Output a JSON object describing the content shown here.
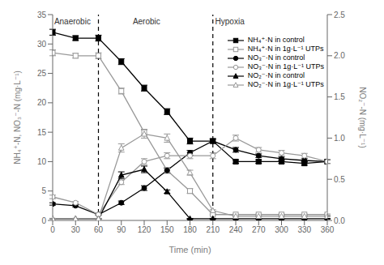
{
  "chart_data": {
    "type": "line",
    "xlabel": "Time (min)",
    "ylabel": "NH₄⁺-N, NO₃⁻-N  (mg·L⁻¹)",
    "y2label": "NO₂⁻-N  (mg·L⁻¹)",
    "x": [
      0,
      30,
      60,
      90,
      120,
      150,
      180,
      210,
      240,
      270,
      300,
      330,
      360
    ],
    "xlim": [
      0,
      360
    ],
    "xticks": [
      0,
      30,
      60,
      90,
      120,
      150,
      180,
      210,
      240,
      270,
      300,
      330,
      360
    ],
    "ylim": [
      0,
      35
    ],
    "yticks": [
      0,
      5,
      10,
      15,
      20,
      25,
      30,
      35
    ],
    "y2lim": [
      0,
      2.5
    ],
    "y2ticks": [
      {
        "value": 0,
        "label": "0.0"
      },
      0.5,
      {
        "value": 1,
        "label": "1.0"
      },
      1.5,
      {
        "value": 2,
        "label": "2.0"
      },
      2.5
    ],
    "grid": false,
    "legend": "upper right",
    "vlines": [
      60,
      210
    ],
    "annotations": [
      {
        "text": "Anaerobic",
        "x": 2,
        "y": 34.5
      },
      {
        "text": "Aerobic",
        "x": 105,
        "y": 34.5
      },
      {
        "text": "Hypoxia",
        "x": 213,
        "y": 34.5
      }
    ],
    "series": [
      {
        "name": "NH₄⁺·N in control",
        "color": "#000000",
        "marker": "square",
        "axis": "y",
        "values": [
          32,
          31,
          31,
          27,
          22.5,
          18.5,
          13.5,
          13.5,
          10,
          10,
          10,
          9.7,
          10
        ],
        "error": [
          0.5,
          0.4,
          0.5,
          0.5,
          0.5,
          0.5,
          0.5,
          0.3,
          0.3,
          0.3,
          0.3,
          0.3,
          0.3
        ]
      },
      {
        "name": "NH₄⁺·N in 1g·L⁻¹ UTPs",
        "color": "#999999",
        "marker": "open-square",
        "axis": "y",
        "values": [
          28.5,
          28,
          28,
          22,
          15,
          8.5,
          5,
          1,
          1,
          1,
          1,
          1,
          1
        ],
        "error": [
          0.5,
          0.4,
          0.5,
          0.5,
          0.5,
          0.5,
          0.4,
          0.1,
          0.1,
          0.1,
          0.1,
          0.1,
          0.1
        ]
      },
      {
        "name": "NO₃⁻·N in control",
        "color": "#000000",
        "marker": "circle",
        "axis": "y",
        "values": [
          2.8,
          2.5,
          1,
          3,
          5.5,
          8.5,
          11.5,
          13.5,
          12,
          11,
          10.5,
          10.2,
          10
        ],
        "error": [
          0.2,
          0.2,
          0.1,
          0.3,
          0.4,
          0.4,
          0.4,
          0.4,
          0.4,
          0.3,
          0.3,
          0.3,
          0.3
        ]
      },
      {
        "name": "NO₃⁻·N in 1g·L⁻¹ UTPs",
        "color": "#999999",
        "marker": "open-circle",
        "axis": "y",
        "values": [
          4,
          3,
          1,
          6.5,
          10,
          11,
          11,
          11,
          14,
          12,
          11.5,
          11,
          10
        ],
        "error": [
          0.3,
          0.2,
          0.1,
          0.4,
          0.5,
          0.5,
          0.5,
          0.5,
          0.5,
          0.4,
          0.4,
          0.4,
          0.3
        ]
      },
      {
        "name": "NO₂⁻·N in control",
        "color": "#000000",
        "marker": "triangle",
        "axis": "y2",
        "values": [
          0.02,
          0.02,
          0.02,
          0.55,
          0.62,
          0.35,
          0.02,
          0.02,
          0.02,
          0.02,
          0.02,
          0.02,
          0.02
        ],
        "error": [
          0.005,
          0.005,
          0.005,
          0.04,
          0.04,
          0.02,
          0.005,
          0.005,
          0.005,
          0.005,
          0.005,
          0.005,
          0.005
        ]
      },
      {
        "name": "NO₂⁻·N in 1g·L⁻¹ UTPs",
        "color": "#999999",
        "marker": "open-triangle",
        "axis": "y2",
        "values": [
          0.02,
          0.02,
          0.02,
          0.88,
          1.05,
          1.0,
          0.58,
          0.12,
          0.05,
          0.05,
          0.05,
          0.05,
          0.05
        ],
        "error": [
          0.005,
          0.005,
          0.005,
          0.05,
          0.05,
          0.05,
          0.03,
          0.01,
          0.005,
          0.005,
          0.005,
          0.005,
          0.005
        ]
      }
    ]
  }
}
